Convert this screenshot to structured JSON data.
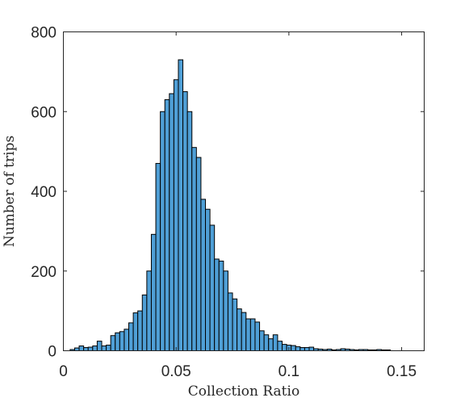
{
  "chart_data": {
    "type": "bar",
    "subtype": "histogram",
    "title": "",
    "xlabel": "Collection Ratio",
    "ylabel": "Number of trips",
    "xlim": [
      0,
      0.16
    ],
    "ylim": [
      0,
      800
    ],
    "xticks": [
      0,
      0.05,
      0.1,
      0.15
    ],
    "xtick_labels": [
      "0",
      "0.05",
      "0.1",
      "0.15"
    ],
    "yticks": [
      0,
      200,
      400,
      600,
      800
    ],
    "ytick_labels": [
      "0",
      "200",
      "400",
      "600",
      "800"
    ],
    "grid": false,
    "bar_color": "#4f9fd6",
    "bin_width": 0.002,
    "bin_start": 0.003,
    "counts": [
      3,
      7,
      12,
      8,
      9,
      12,
      24,
      12,
      14,
      38,
      45,
      48,
      54,
      70,
      95,
      100,
      140,
      200,
      292,
      470,
      600,
      630,
      645,
      680,
      730,
      650,
      600,
      510,
      485,
      380,
      355,
      315,
      230,
      225,
      200,
      145,
      130,
      105,
      96,
      80,
      80,
      72,
      50,
      40,
      30,
      40,
      24,
      16,
      14,
      13,
      10,
      8,
      8,
      9,
      5,
      4,
      3,
      4,
      2,
      3,
      5,
      4,
      3,
      2,
      3,
      3,
      2,
      2,
      3,
      2,
      2
    ]
  }
}
